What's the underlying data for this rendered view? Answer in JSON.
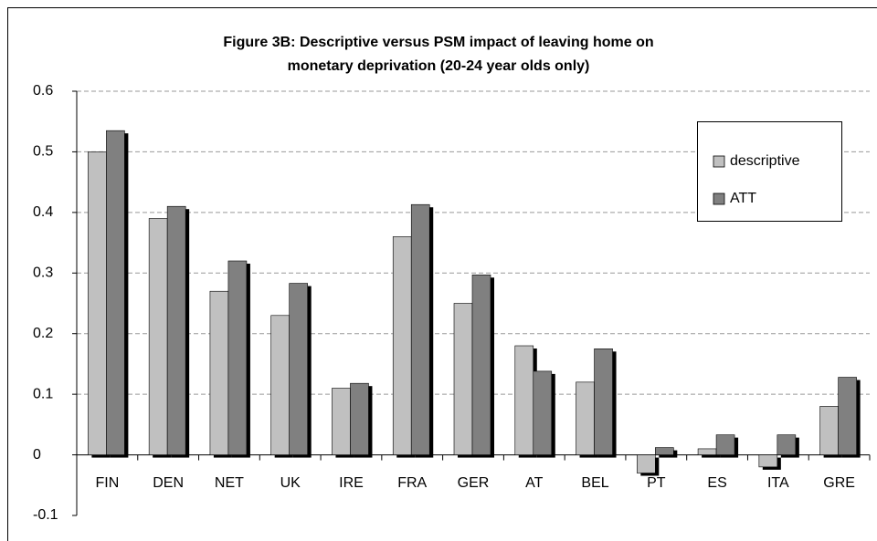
{
  "chart_data": {
    "type": "bar",
    "title": [
      "Figure 3B: Descriptive versus PSM impact of leaving home on",
      "monetary deprivation (20-24 year olds only)"
    ],
    "categories": [
      "FIN",
      "DEN",
      "NET",
      "UK",
      "IRE",
      "FRA",
      "GER",
      "AT",
      "BEL",
      "PT",
      "ES",
      "ITA",
      "GRE"
    ],
    "series": [
      {
        "name": "descriptive",
        "color": "#c0c0c0",
        "values": [
          0.5,
          0.39,
          0.27,
          0.23,
          0.11,
          0.36,
          0.25,
          0.18,
          0.12,
          -0.03,
          0.01,
          -0.02,
          0.08
        ]
      },
      {
        "name": "ATT",
        "color": "#808080",
        "values": [
          0.535,
          0.41,
          0.32,
          0.283,
          0.118,
          0.413,
          0.297,
          0.138,
          0.175,
          0.012,
          0.033,
          0.033,
          0.128
        ]
      }
    ],
    "ylim": [
      -0.1,
      0.6
    ],
    "yticks": [
      -0.1,
      0,
      0.1,
      0.2,
      0.3,
      0.4,
      0.5,
      0.6
    ],
    "grid": true,
    "legend": "upper right"
  }
}
